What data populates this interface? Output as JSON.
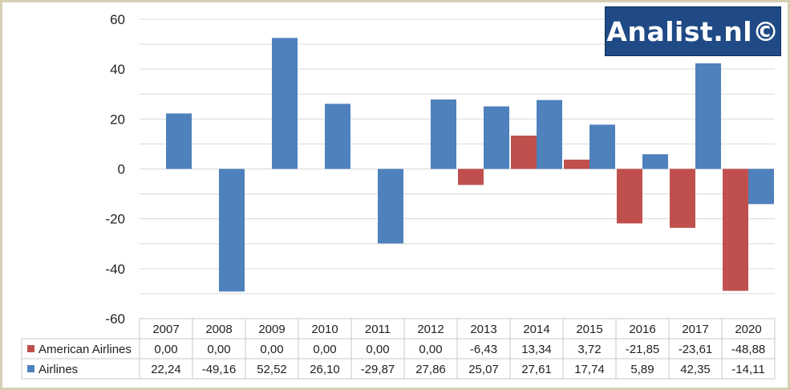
{
  "logo": {
    "text": "Analist.nl©"
  },
  "colors": {
    "series_1": "#c0504d",
    "series_2": "#4f81bd",
    "grid": "#d9d9d9",
    "frame": "#d6cfb4",
    "logo_bg": "#1f4a86"
  },
  "chart_data": {
    "type": "bar",
    "categories": [
      "2007",
      "2008",
      "2009",
      "2010",
      "2011",
      "2012",
      "2013",
      "2014",
      "2015",
      "2016",
      "2017",
      "2020"
    ],
    "series": [
      {
        "name": "American Airlines",
        "color": "#c0504d",
        "values": [
          0,
          0,
          0,
          0,
          0,
          0,
          -6.43,
          13.34,
          3.72,
          -21.85,
          -23.61,
          -48.88
        ],
        "labels": [
          "0,00",
          "0,00",
          "0,00",
          "0,00",
          "0,00",
          "0,00",
          "-6,43",
          "13,34",
          "3,72",
          "-21,85",
          "-23,61",
          "-48,88"
        ]
      },
      {
        "name": "Airlines",
        "color": "#4f81bd",
        "values": [
          22.24,
          -49.16,
          52.52,
          26.1,
          -29.87,
          27.86,
          25.07,
          27.61,
          17.74,
          5.89,
          42.35,
          -14.11
        ],
        "labels": [
          "22,24",
          "-49,16",
          "52,52",
          "26,10",
          "-29,87",
          "27,86",
          "25,07",
          "27,61",
          "17,74",
          "5,89",
          "42,35",
          "-14,11"
        ]
      }
    ],
    "yticks": [
      "-60",
      "-40",
      "-20",
      "0",
      "20",
      "40",
      "60"
    ],
    "ylim": [
      -60,
      60
    ],
    "grid": true,
    "legend": "data-table"
  }
}
